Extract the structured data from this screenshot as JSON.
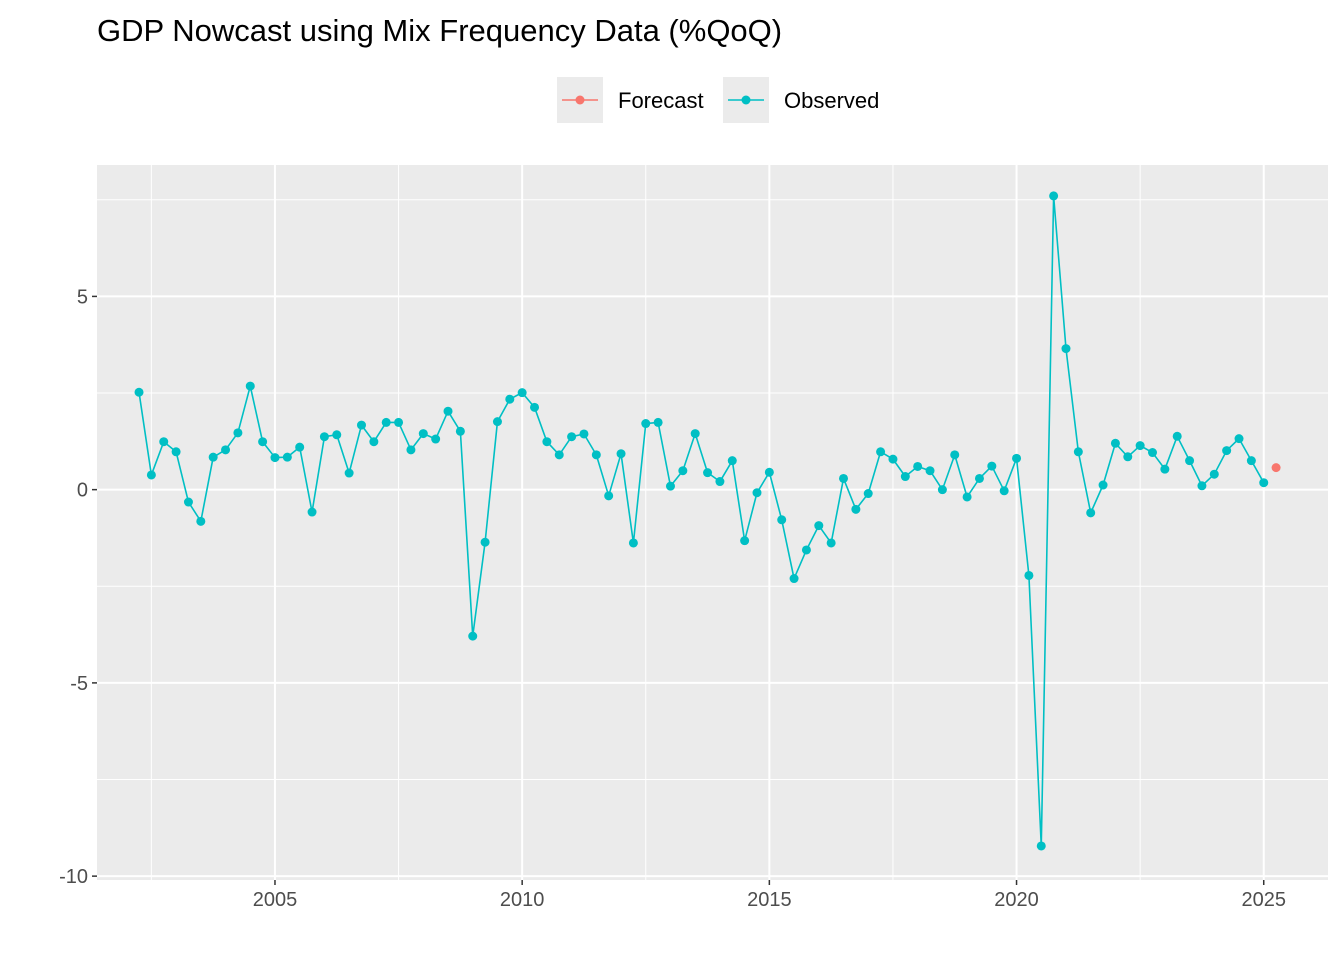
{
  "chart_data": {
    "type": "line",
    "title": "GDP Nowcast using Mix Frequency Data (%QoQ)",
    "xlabel": "",
    "ylabel": "",
    "xlim": [
      2001.4,
      2026.3
    ],
    "ylim": [
      -10.1,
      8.4
    ],
    "x_ticks": [
      2005,
      2010,
      2015,
      2020,
      2025
    ],
    "x_tick_labels": [
      "2005",
      "2010",
      "2015",
      "2020",
      "2025"
    ],
    "y_ticks": [
      5,
      0,
      -5,
      -10
    ],
    "y_tick_labels": [
      "5",
      "0",
      "-5",
      "-10"
    ],
    "grid": true,
    "legend": "top-center",
    "series": [
      {
        "name": "Forecast",
        "color": "#F8766D",
        "x": [
          2025.25
        ],
        "y": [
          0.57
        ]
      },
      {
        "name": "Observed",
        "color": "#00BFC4",
        "start": 2002.25,
        "step": 0.25,
        "y": [
          2.52,
          0.38,
          1.24,
          0.98,
          -0.32,
          -0.82,
          0.84,
          1.03,
          1.47,
          2.68,
          1.24,
          0.83,
          0.84,
          1.1,
          -0.58,
          1.37,
          1.42,
          0.43,
          1.67,
          1.24,
          1.74,
          1.74,
          1.03,
          1.45,
          1.31,
          2.03,
          1.51,
          -3.79,
          -1.36,
          1.76,
          2.34,
          2.51,
          2.13,
          1.24,
          0.9,
          1.37,
          1.44,
          0.9,
          -0.16,
          0.93,
          -1.38,
          1.71,
          1.74,
          0.09,
          0.49,
          1.45,
          0.44,
          0.21,
          0.75,
          -1.32,
          -0.08,
          0.45,
          -0.78,
          -2.3,
          -1.56,
          -0.93,
          -1.38,
          0.29,
          -0.51,
          -0.1,
          0.98,
          0.79,
          0.34,
          0.6,
          0.49,
          0.0,
          0.9,
          -0.19,
          0.29,
          0.61,
          -0.03,
          0.81,
          -2.22,
          -9.22,
          7.6,
          3.65,
          0.98,
          -0.6,
          0.12,
          1.2,
          0.85,
          1.14,
          0.96,
          0.53,
          1.38,
          0.75,
          0.1,
          0.4,
          1.01,
          1.32,
          0.75,
          0.18
        ]
      }
    ]
  }
}
